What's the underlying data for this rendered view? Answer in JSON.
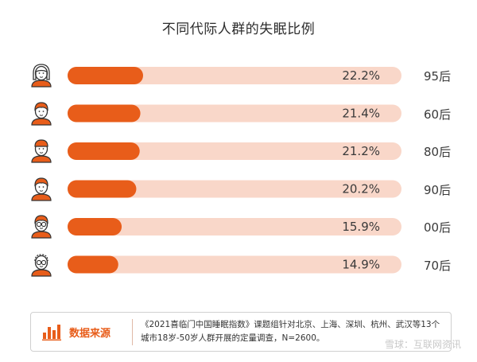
{
  "title": "不同代际人群的失眠比例",
  "accent_color": "#E85D1A",
  "track_color": "#F9D7C9",
  "chart_data": {
    "type": "bar",
    "orientation": "horizontal",
    "title": "不同代际人群的失眠比例",
    "categories": [
      "95后",
      "60后",
      "80后",
      "90后",
      "00后",
      "70后"
    ],
    "values": [
      22.2,
      21.4,
      21.2,
      20.2,
      15.9,
      14.9
    ],
    "value_labels": [
      "22.2%",
      "21.4%",
      "21.2%",
      "20.2%",
      "15.9%",
      "14.9%"
    ],
    "unit": "%",
    "bar_colors": {
      "fill": "#E85D1A",
      "track": "#F9D7C9"
    },
    "grid": false,
    "legend": "none"
  },
  "avatars": [
    "female-avatar-icon",
    "person-avatar-icon",
    "person-cap-avatar-icon",
    "person-avatar-icon",
    "person-glasses-avatar-icon",
    "elderly-glasses-avatar-icon"
  ],
  "source": {
    "label": "数据来源",
    "text": "《2021喜临门中国睡眠指数》课题组针对北京、上海、深圳、杭州、武汉等13个城市18岁-50岁人群开展的定量调查，N=2600。"
  },
  "watermark": "雪球：互联网资讯"
}
